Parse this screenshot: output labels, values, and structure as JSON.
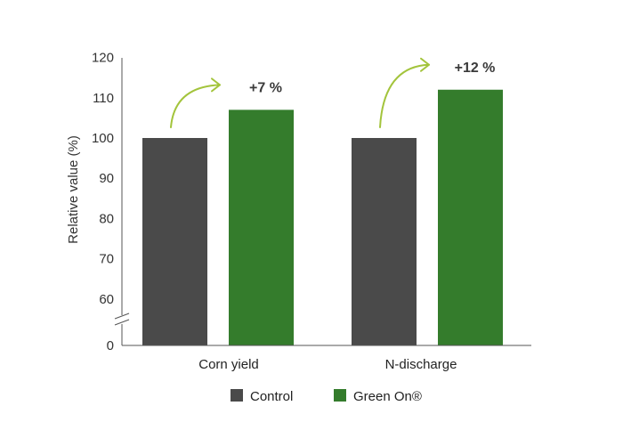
{
  "chart_data": {
    "type": "bar",
    "ylabel": "Relative value (%)",
    "y_ticks": [
      "0",
      "60",
      "70",
      "80",
      "90",
      "100",
      "110",
      "120"
    ],
    "y_axis_break": true,
    "ylim": [
      55,
      120
    ],
    "categories": [
      "Corn yield",
      "N-discharge"
    ],
    "series": [
      {
        "name": "Control",
        "values": [
          100,
          100
        ],
        "color": "#4a4a4a"
      },
      {
        "name": "Green On®",
        "values": [
          107,
          112
        ],
        "color": "#347c2c"
      }
    ],
    "annotations": [
      {
        "category": "Corn yield",
        "text": "+7 %"
      },
      {
        "category": "N-discharge",
        "text": "+12 %"
      }
    ],
    "arrow_color": "#a3c43c",
    "legend_position": "bottom-center",
    "grid": false
  }
}
